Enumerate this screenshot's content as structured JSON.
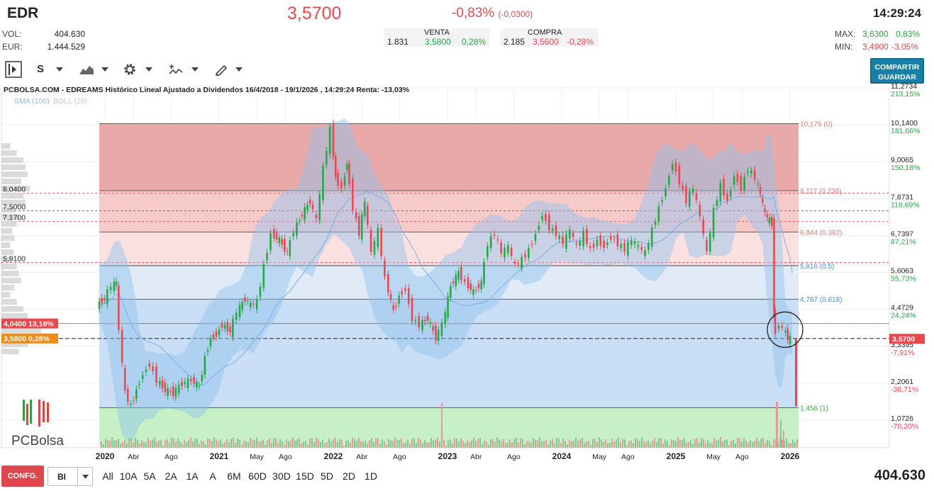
{
  "header": {
    "ticker": "EDR",
    "price": "3,5700",
    "change_pct": "-0,83%",
    "change_abs": "(-0,0300)",
    "time": "14:29:24",
    "vol_label": "VOL:",
    "vol_value": "404.630",
    "eur_label": "EUR:",
    "eur_value": "1.444.529",
    "venta_label": "VENTA",
    "venta_qty": "1.831",
    "venta_price": "3,5800",
    "venta_pct": "0,28%",
    "compra_label": "COMPRA",
    "compra_qty": "2.185",
    "compra_price": "3,5600",
    "compra_pct": "-0,28%",
    "max_label": "MAX:",
    "max_value": "3,6300",
    "max_pct": "0,83%",
    "min_label": "MIN:",
    "min_value": "3,4900",
    "min_pct": "-3,05%"
  },
  "toolbar": {
    "scale_label": "S",
    "share_line1": "COMPARTIR",
    "share_line2": "GUARDAR"
  },
  "bottom": {
    "config_label": "CONFG.",
    "bi_label": "BI",
    "ranges": [
      "All",
      "10A",
      "5A",
      "2A",
      "1A",
      "A",
      "6M",
      "60D",
      "30D",
      "15D",
      "5D",
      "2D",
      "1D"
    ],
    "volume_total": "404.630"
  },
  "logo_text": "PCBolsa",
  "colors": {
    "up": "#27a844",
    "down": "#e8494f",
    "fib_red": "#d96a6a",
    "fib_blue": "#4a8fd4",
    "fib_green": "#5cbf5c",
    "accent": "#1a7fa6"
  },
  "icons": [
    "play-sidebar-icon",
    "chevron-down-icon",
    "area-chart-icon",
    "gear-icon",
    "indicators-icon",
    "draw-pen-icon"
  ],
  "chart_data": {
    "type": "line",
    "title": "PCBOLSA.COM - EDREAMS Histórico Lineal Ajustado a Dividendos 16/4/2018 - 19/1/2026 , 14:29:24 Renta: -13,03%",
    "legend": [
      "SMA (100)",
      "BOLL (20)"
    ],
    "ylim": [
      0.5,
      11.2734
    ],
    "y_ticks_right": [
      {
        "value": 11.2734,
        "label": "11,2734",
        "pct": "213,15%"
      },
      {
        "value": 10.14,
        "label": "10,1400",
        "pct": "181,66%"
      },
      {
        "value": 9.0065,
        "label": "9,0065",
        "pct": "150,18%"
      },
      {
        "value": 7.8731,
        "label": "7,8731",
        "pct": "118,69%"
      },
      {
        "value": 6.7397,
        "label": "6,7397",
        "pct": "87,21%"
      },
      {
        "value": 5.6063,
        "label": "5,6063",
        "pct": "55,73%"
      },
      {
        "value": 4.4729,
        "label": "4,4729",
        "pct": "24,24%"
      },
      {
        "value": 3.3395,
        "label": "3,3395",
        "pct": "-7,91%"
      },
      {
        "value": 2.2061,
        "label": "2,2061",
        "pct": "-38,71%"
      },
      {
        "value": 1.0726,
        "label": "1,0726",
        "pct": "-70,20%"
      }
    ],
    "last_price": {
      "value": 3.57,
      "label": "3,5700"
    },
    "left_levels": [
      {
        "value": 8.04,
        "label": "8,0400"
      },
      {
        "value": 7.5,
        "label": "7,5000"
      },
      {
        "value": 7.17,
        "label": "7,1700"
      },
      {
        "value": 5.91,
        "label": "5,9100"
      }
    ],
    "left_tags": [
      {
        "value": 4.04,
        "label": "4,0400  13,16%",
        "color": "#e8494f"
      },
      {
        "value": 3.58,
        "label": "3,5800  0,28%",
        "color": "#f08a12"
      }
    ],
    "fibonacci": [
      {
        "value": 10.175,
        "label": "10,175 (0)"
      },
      {
        "value": 8.117,
        "label": "8,117 (0.236)"
      },
      {
        "value": 6.844,
        "label": "6,844 (0.382)"
      },
      {
        "value": 5.816,
        "label": "5,816 (0.5)"
      },
      {
        "value": 4.787,
        "label": "4,787 (0.618)"
      },
      {
        "value": 1.456,
        "label": "1,456 (1)"
      }
    ],
    "x_labels": [
      {
        "t": 2020.0,
        "label": "2020",
        "bold": true
      },
      {
        "t": 2020.25,
        "label": "Abr"
      },
      {
        "t": 2020.58,
        "label": "Ago"
      },
      {
        "t": 2021.0,
        "label": "2021",
        "bold": true
      },
      {
        "t": 2021.33,
        "label": "May"
      },
      {
        "t": 2021.58,
        "label": "Ago"
      },
      {
        "t": 2022.0,
        "label": "2022",
        "bold": true
      },
      {
        "t": 2022.25,
        "label": "Abr"
      },
      {
        "t": 2022.58,
        "label": "Ago"
      },
      {
        "t": 2023.0,
        "label": "2023",
        "bold": true
      },
      {
        "t": 2023.25,
        "label": "Abr"
      },
      {
        "t": 2023.58,
        "label": "Ago"
      },
      {
        "t": 2024.0,
        "label": "2024",
        "bold": true
      },
      {
        "t": 2024.33,
        "label": "May"
      },
      {
        "t": 2024.58,
        "label": "Ago"
      },
      {
        "t": 2025.0,
        "label": "2025",
        "bold": true
      },
      {
        "t": 2025.33,
        "label": "May"
      },
      {
        "t": 2025.58,
        "label": "Ago"
      },
      {
        "t": 2026.0,
        "label": "2026",
        "bold": true
      }
    ],
    "price_path": [
      [
        2019.95,
        4.6
      ],
      [
        2020.02,
        4.8
      ],
      [
        2020.08,
        5.2
      ],
      [
        2020.12,
        5.3
      ],
      [
        2020.15,
        3.8
      ],
      [
        2020.2,
        1.9
      ],
      [
        2020.25,
        1.5
      ],
      [
        2020.3,
        2.0
      ],
      [
        2020.36,
        2.5
      ],
      [
        2020.42,
        2.8
      ],
      [
        2020.48,
        2.3
      ],
      [
        2020.55,
        2.0
      ],
      [
        2020.62,
        1.9
      ],
      [
        2020.7,
        2.2
      ],
      [
        2020.78,
        2.3
      ],
      [
        2020.85,
        2.1
      ],
      [
        2020.9,
        3.0
      ],
      [
        2020.95,
        3.6
      ],
      [
        2021.0,
        3.7
      ],
      [
        2021.05,
        4.0
      ],
      [
        2021.12,
        3.8
      ],
      [
        2021.18,
        4.4
      ],
      [
        2021.25,
        4.8
      ],
      [
        2021.3,
        4.6
      ],
      [
        2021.36,
        4.7
      ],
      [
        2021.42,
        5.8
      ],
      [
        2021.48,
        6.8
      ],
      [
        2021.55,
        6.6
      ],
      [
        2021.62,
        6.2
      ],
      [
        2021.68,
        6.9
      ],
      [
        2021.75,
        7.4
      ],
      [
        2021.82,
        7.8
      ],
      [
        2021.88,
        7.2
      ],
      [
        2021.94,
        8.8
      ],
      [
        2022.0,
        10.0
      ],
      [
        2022.04,
        8.5
      ],
      [
        2022.1,
        8.2
      ],
      [
        2022.14,
        9.0
      ],
      [
        2022.2,
        7.6
      ],
      [
        2022.25,
        6.8
      ],
      [
        2022.3,
        7.8
      ],
      [
        2022.36,
        6.2
      ],
      [
        2022.42,
        6.9
      ],
      [
        2022.48,
        5.4
      ],
      [
        2022.55,
        4.4
      ],
      [
        2022.6,
        4.9
      ],
      [
        2022.66,
        5.1
      ],
      [
        2022.72,
        4.2
      ],
      [
        2022.78,
        4.0
      ],
      [
        2022.85,
        4.2
      ],
      [
        2022.92,
        3.6
      ],
      [
        2022.98,
        4.0
      ],
      [
        2023.05,
        5.2
      ],
      [
        2023.12,
        5.6
      ],
      [
        2023.18,
        5.3
      ],
      [
        2023.25,
        5.0
      ],
      [
        2023.32,
        5.3
      ],
      [
        2023.38,
        6.5
      ],
      [
        2023.44,
        6.8
      ],
      [
        2023.5,
        6.2
      ],
      [
        2023.56,
        6.4
      ],
      [
        2023.62,
        5.8
      ],
      [
        2023.68,
        6.0
      ],
      [
        2023.74,
        6.3
      ],
      [
        2023.8,
        6.8
      ],
      [
        2023.86,
        7.4
      ],
      [
        2023.92,
        7.0
      ],
      [
        2023.98,
        6.8
      ],
      [
        2024.04,
        6.5
      ],
      [
        2024.1,
        6.9
      ],
      [
        2024.16,
        6.4
      ],
      [
        2024.22,
        6.8
      ],
      [
        2024.28,
        6.3
      ],
      [
        2024.34,
        6.6
      ],
      [
        2024.4,
        6.4
      ],
      [
        2024.46,
        6.7
      ],
      [
        2024.52,
        6.5
      ],
      [
        2024.58,
        6.3
      ],
      [
        2024.64,
        6.6
      ],
      [
        2024.7,
        6.4
      ],
      [
        2024.76,
        6.2
      ],
      [
        2024.82,
        6.9
      ],
      [
        2024.88,
        7.6
      ],
      [
        2024.94,
        8.2
      ],
      [
        2025.0,
        9.0
      ],
      [
        2025.06,
        8.4
      ],
      [
        2025.12,
        7.8
      ],
      [
        2025.18,
        8.2
      ],
      [
        2025.24,
        7.3
      ],
      [
        2025.3,
        6.2
      ],
      [
        2025.36,
        7.5
      ],
      [
        2025.42,
        8.3
      ],
      [
        2025.48,
        7.8
      ],
      [
        2025.54,
        8.6
      ],
      [
        2025.6,
        8.2
      ],
      [
        2025.66,
        8.8
      ],
      [
        2025.72,
        8.5
      ],
      [
        2025.76,
        8.0
      ],
      [
        2025.8,
        7.4
      ],
      [
        2025.84,
        7.2
      ],
      [
        2025.86,
        7.1
      ],
      [
        2025.87,
        4.3
      ],
      [
        2025.9,
        3.8
      ],
      [
        2025.93,
        4.0
      ],
      [
        2025.96,
        3.9
      ],
      [
        2026.0,
        3.6
      ],
      [
        2026.02,
        3.57
      ]
    ]
  }
}
